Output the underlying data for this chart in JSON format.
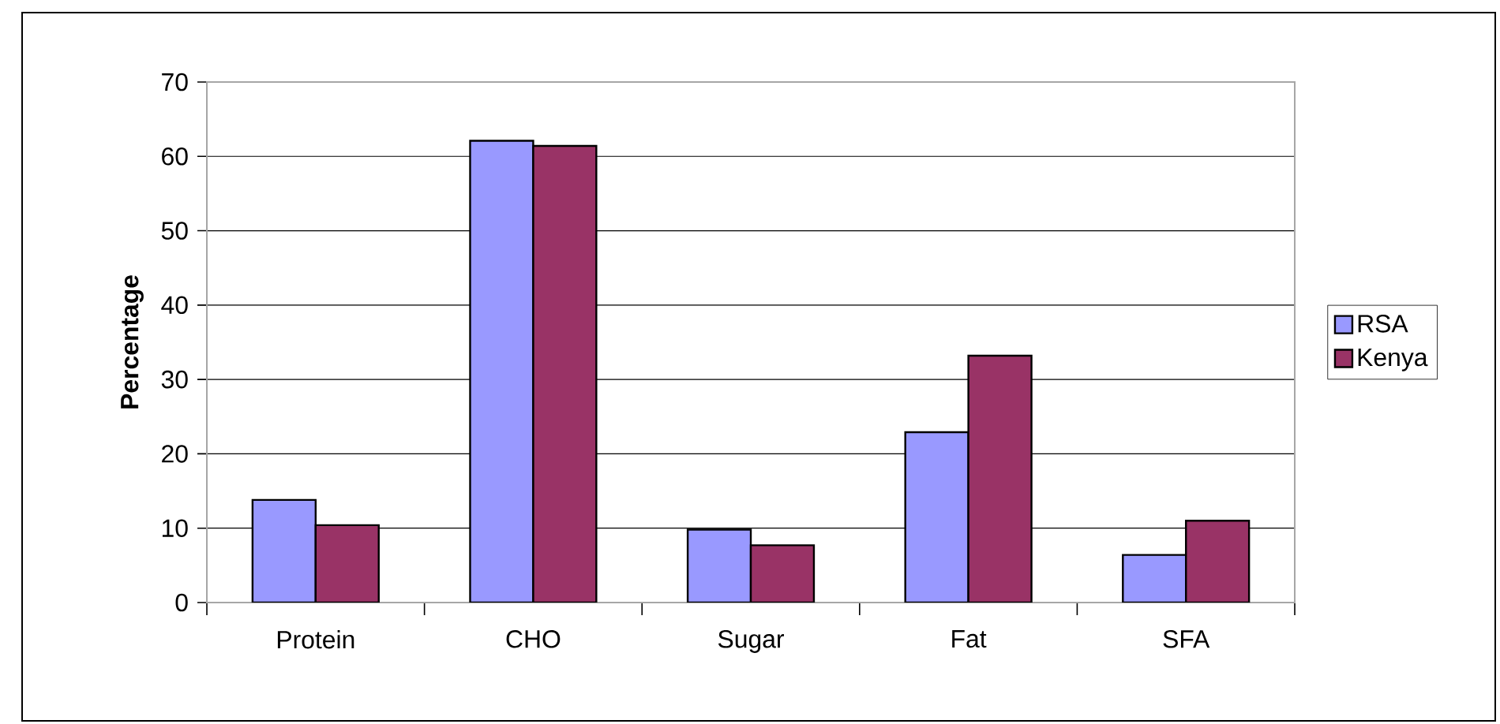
{
  "chart_data": {
    "type": "bar",
    "ylabel": "Percentage",
    "categories": [
      "Protein",
      "CHO",
      "Sugar",
      "Fat",
      "SFA"
    ],
    "series": [
      {
        "name": "RSA",
        "color": "#9999ff",
        "values": [
          13.8,
          62.1,
          9.8,
          22.9,
          6.4
        ]
      },
      {
        "name": "Kenya",
        "color": "#993366",
        "values": [
          10.4,
          61.4,
          7.7,
          33.2,
          11.0
        ]
      }
    ],
    "ylim": [
      0,
      70
    ],
    "yticks": [
      0,
      10,
      20,
      30,
      40,
      50,
      60,
      70
    ],
    "grid": "y",
    "legend": "right"
  }
}
